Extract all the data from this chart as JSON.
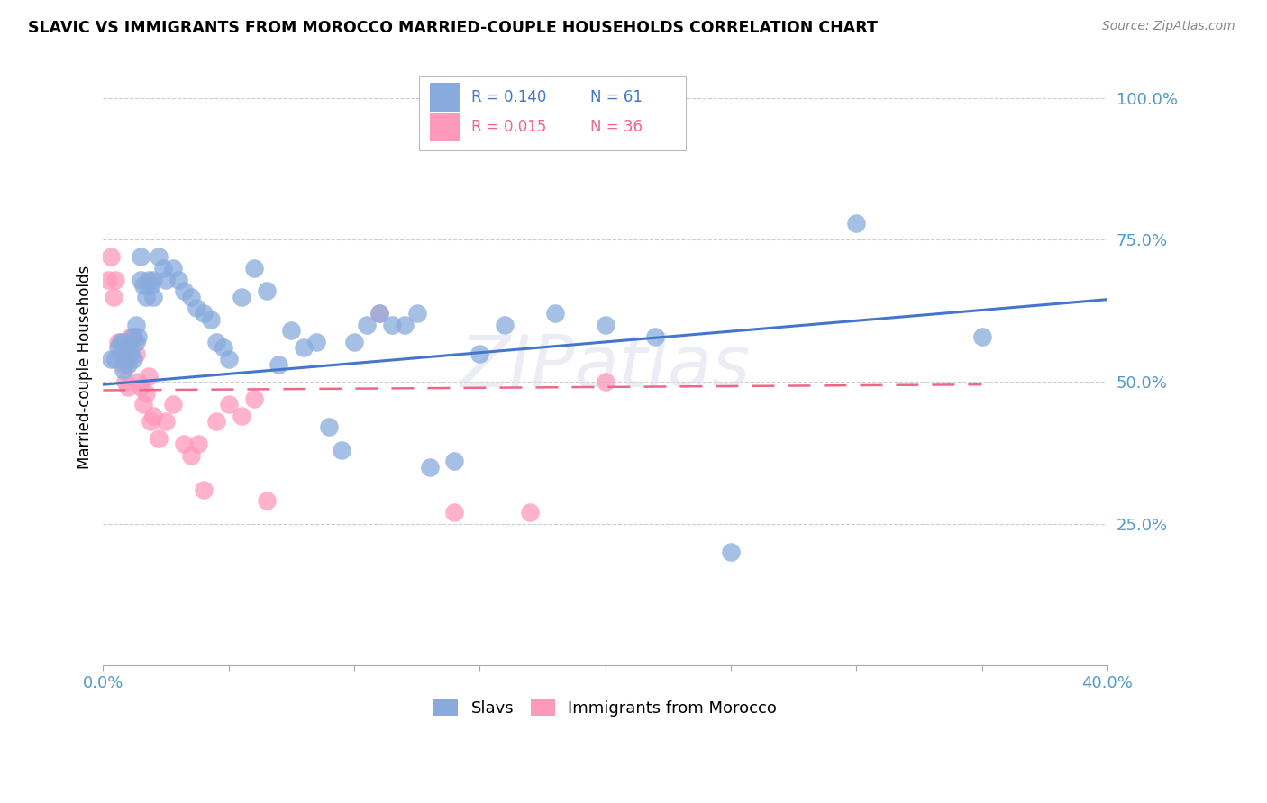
{
  "title": "SLAVIC VS IMMIGRANTS FROM MOROCCO MARRIED-COUPLE HOUSEHOLDS CORRELATION CHART",
  "source": "Source: ZipAtlas.com",
  "ylabel": "Married-couple Households",
  "xlim": [
    0.0,
    0.4
  ],
  "ylim": [
    0.0,
    1.05
  ],
  "yticks": [
    0.25,
    0.5,
    0.75,
    1.0
  ],
  "ytick_labels": [
    "25.0%",
    "50.0%",
    "75.0%",
    "100.0%"
  ],
  "xticks": [
    0.0,
    0.05,
    0.1,
    0.15,
    0.2,
    0.25,
    0.3,
    0.35,
    0.4
  ],
  "xtick_labels": [
    "0.0%",
    "",
    "",
    "",
    "",
    "",
    "",
    "",
    "40.0%"
  ],
  "color_slavs": "#88AADD",
  "color_morocco": "#FF99BB",
  "color_slavs_line": "#4477CC",
  "color_morocco_line": "#EE6688",
  "color_axis_labels": "#5599CC",
  "color_grid": "#CCCCCC",
  "background_color": "#FFFFFF",
  "watermark_text": "ZIPatlas",
  "slavs_x": [
    0.003,
    0.005,
    0.006,
    0.007,
    0.008,
    0.008,
    0.009,
    0.01,
    0.01,
    0.011,
    0.012,
    0.012,
    0.013,
    0.013,
    0.014,
    0.015,
    0.015,
    0.016,
    0.017,
    0.018,
    0.019,
    0.02,
    0.02,
    0.022,
    0.024,
    0.025,
    0.028,
    0.03,
    0.032,
    0.035,
    0.037,
    0.04,
    0.043,
    0.045,
    0.048,
    0.05,
    0.055,
    0.06,
    0.065,
    0.07,
    0.075,
    0.08,
    0.085,
    0.09,
    0.095,
    0.1,
    0.105,
    0.11,
    0.115,
    0.12,
    0.125,
    0.13,
    0.14,
    0.15,
    0.16,
    0.18,
    0.2,
    0.22,
    0.25,
    0.3,
    0.35
  ],
  "slavs_y": [
    0.54,
    0.54,
    0.56,
    0.57,
    0.57,
    0.52,
    0.54,
    0.56,
    0.53,
    0.55,
    0.58,
    0.54,
    0.57,
    0.6,
    0.58,
    0.72,
    0.68,
    0.67,
    0.65,
    0.68,
    0.67,
    0.68,
    0.65,
    0.72,
    0.7,
    0.68,
    0.7,
    0.68,
    0.66,
    0.65,
    0.63,
    0.62,
    0.61,
    0.57,
    0.56,
    0.54,
    0.65,
    0.7,
    0.66,
    0.53,
    0.59,
    0.56,
    0.57,
    0.42,
    0.38,
    0.57,
    0.6,
    0.62,
    0.6,
    0.6,
    0.62,
    0.35,
    0.36,
    0.55,
    0.6,
    0.62,
    0.6,
    0.58,
    0.2,
    0.78,
    0.58
  ],
  "morocco_x": [
    0.002,
    0.003,
    0.004,
    0.005,
    0.006,
    0.007,
    0.008,
    0.009,
    0.01,
    0.01,
    0.011,
    0.012,
    0.013,
    0.014,
    0.015,
    0.016,
    0.017,
    0.018,
    0.019,
    0.02,
    0.022,
    0.025,
    0.028,
    0.032,
    0.035,
    0.038,
    0.04,
    0.045,
    0.05,
    0.055,
    0.06,
    0.065,
    0.11,
    0.14,
    0.17,
    0.2
  ],
  "morocco_y": [
    0.68,
    0.72,
    0.65,
    0.68,
    0.57,
    0.55,
    0.53,
    0.5,
    0.49,
    0.54,
    0.58,
    0.58,
    0.55,
    0.5,
    0.49,
    0.46,
    0.48,
    0.51,
    0.43,
    0.44,
    0.4,
    0.43,
    0.46,
    0.39,
    0.37,
    0.39,
    0.31,
    0.43,
    0.46,
    0.44,
    0.47,
    0.29,
    0.62,
    0.27,
    0.27,
    0.5
  ],
  "slavs_trend_x": [
    0.0,
    0.4
  ],
  "slavs_trend_y": [
    0.495,
    0.645
  ],
  "morocco_trend_x": [
    0.0,
    0.35
  ],
  "morocco_trend_y": [
    0.485,
    0.495
  ]
}
